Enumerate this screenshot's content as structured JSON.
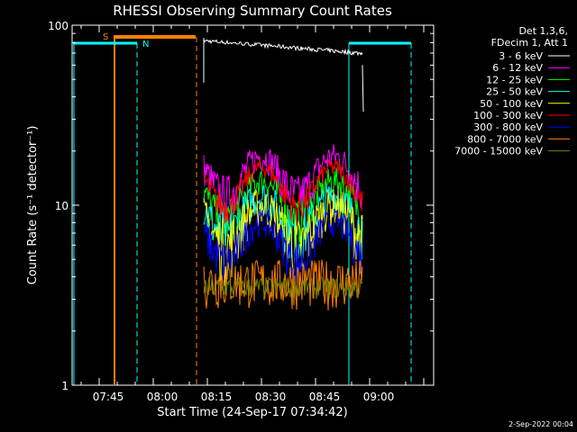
{
  "chart_data": {
    "type": "line",
    "title": "RHESSI Observing Summary Count Rates",
    "xlabel": "Start Time (24-Sep-17 07:34:42)",
    "ylabel": "Count Rate (s⁻¹ detector⁻¹)",
    "yscale": "log",
    "ylim": [
      1,
      100
    ],
    "xlim_minutes": [
      "07:34:42",
      "09:15:00"
    ],
    "x_ticks": [
      "07:45",
      "08:00",
      "08:15",
      "08:30",
      "08:45",
      "09:00"
    ],
    "y_ticks": [
      "1",
      "10",
      "100"
    ],
    "legend_header": [
      "Det 1,3,6,",
      "FDecim 1, Att 1"
    ],
    "legend_position": "right",
    "series": [
      {
        "name": "3 - 6 keV",
        "color": "#ffffff",
        "level": 70,
        "spread": 4
      },
      {
        "name": "6 - 12 keV",
        "color": "#ff00ff",
        "level": 15,
        "spread": 3.5
      },
      {
        "name": "12 - 25 keV",
        "color": "#00ff00",
        "level": 11,
        "spread": 2.5
      },
      {
        "name": "25 - 50 keV",
        "color": "#00ffff",
        "level": 9,
        "spread": 2.5
      },
      {
        "name": "50 - 100 keV",
        "color": "#ffff00",
        "level": 8,
        "spread": 2.5
      },
      {
        "name": "100 - 300 keV",
        "color": "#ff0000",
        "level": 13,
        "spread": 2
      },
      {
        "name": "300 - 800 keV",
        "color": "#0000ff",
        "level": 6.5,
        "spread": 1.5
      },
      {
        "name": "800 - 7000 keV",
        "color": "#ff8000",
        "level": 3.8,
        "spread": 1.2
      },
      {
        "name": "7000 - 15000 keV",
        "color": "#808000",
        "level": 3.5,
        "spread": 0.5
      }
    ],
    "markers": {
      "saa_label": "S",
      "night_label": "N"
    },
    "footer_date": "2-Sep-2022 00:04"
  }
}
